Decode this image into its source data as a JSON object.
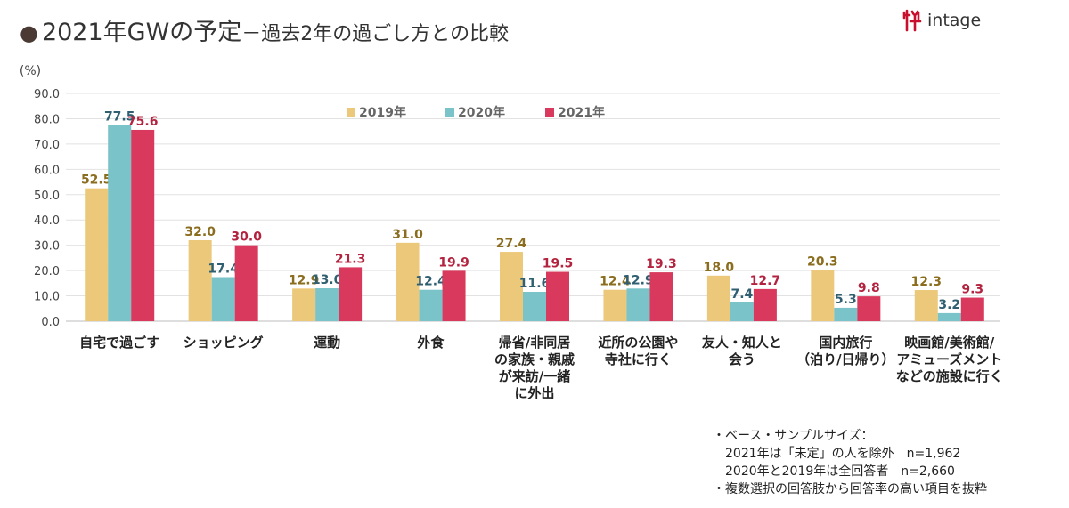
{
  "header": {
    "title_main": "2021年GWの予定",
    "title_sub": "－過去2年の過ごし方との比較",
    "logo_text": "intage"
  },
  "chart_data": {
    "type": "bar",
    "unit_label": "(%)",
    "ylim": [
      0,
      90
    ],
    "yticks": [
      "0.0",
      "10.0",
      "20.0",
      "30.0",
      "40.0",
      "50.0",
      "60.0",
      "70.0",
      "80.0",
      "90.0"
    ],
    "grid": true,
    "legend_position": "top",
    "categories": [
      [
        "自宅で過ごす"
      ],
      [
        "ショッピング"
      ],
      [
        "運動"
      ],
      [
        "外食"
      ],
      [
        "帰省/非同居",
        "の家族・親戚",
        "が来訪/一緒",
        "に外出"
      ],
      [
        "近所の公園や",
        "寺社に行く"
      ],
      [
        "友人・知人と",
        "会う"
      ],
      [
        "国内旅行",
        "（泊り/日帰り）"
      ],
      [
        "映画館/美術館/",
        "アミューズメント",
        "などの施設に行く"
      ]
    ],
    "series": [
      {
        "name": "2019年",
        "color": "#ecc97a",
        "label_color": "#8a6d1e",
        "values": [
          52.5,
          32.0,
          12.9,
          31.0,
          27.4,
          12.4,
          18.0,
          20.3,
          12.3
        ]
      },
      {
        "name": "2020年",
        "color": "#79c3c9",
        "label_color": "#2f5f70",
        "values": [
          77.5,
          17.4,
          13.0,
          12.4,
          11.6,
          12.9,
          7.4,
          5.3,
          3.2
        ]
      },
      {
        "name": "2021年",
        "color": "#d8395c",
        "label_color": "#b3233f",
        "values": [
          75.6,
          30.0,
          21.3,
          19.9,
          19.5,
          19.3,
          12.7,
          9.8,
          9.3
        ]
      }
    ]
  },
  "notes": [
    "・ベース・サンプルサイズ：",
    "　2021年は「未定」の人を除外　n=1,962",
    "　2020年と2019年は全回答者　n=2,660",
    "・複数選択の回答肢から回答率の高い項目を抜粋"
  ]
}
